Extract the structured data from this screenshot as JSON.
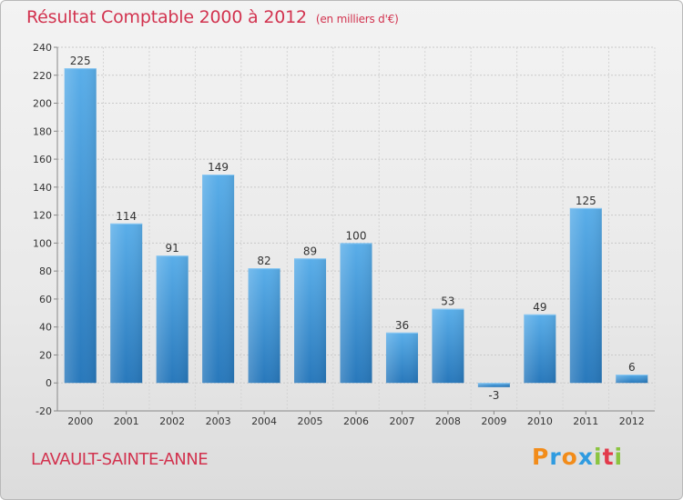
{
  "header": {
    "title": "Résultat Comptable 2000 à 2012",
    "subtitle": "(en milliers d'€)"
  },
  "footer": {
    "commune": "LAVAULT-SAINTE-ANNE",
    "brand": "Proxiti"
  },
  "colors": {
    "bar_top": "#5aaee9",
    "bar_bottom": "#2878bb",
    "title": "#d2334f"
  },
  "chart_data": {
    "type": "bar",
    "title": "Résultat Comptable 2000 à 2012",
    "subtitle": "(en milliers d'€)",
    "xlabel": "",
    "ylabel": "",
    "categories": [
      "2000",
      "2001",
      "2002",
      "2003",
      "2004",
      "2005",
      "2006",
      "2007",
      "2008",
      "2009",
      "2010",
      "2011",
      "2012"
    ],
    "values": [
      225,
      114,
      91,
      149,
      82,
      89,
      100,
      36,
      53,
      -3,
      49,
      125,
      6
    ],
    "ylim": [
      -20,
      240
    ],
    "yticks": [
      -20,
      0,
      20,
      40,
      60,
      80,
      100,
      120,
      140,
      160,
      180,
      200,
      220,
      240
    ],
    "grid": true,
    "legend": "none"
  }
}
